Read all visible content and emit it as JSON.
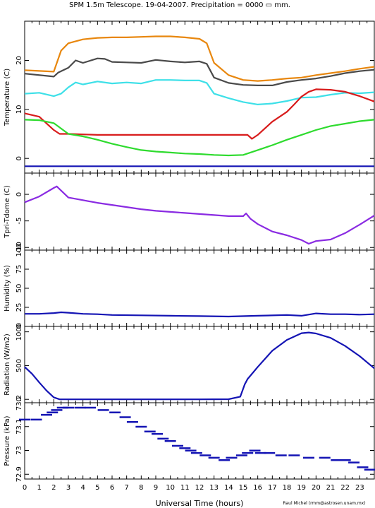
{
  "title": "SPM 1.5m Telescope. 19-04-2007. Precipitation = 0000",
  "title_unit": "mm.",
  "credit": "Raul Michel (rmm@astrosen.unam.mx)",
  "colors": {
    "orange": "#e8870e",
    "dark_gray": "#4a4a4a",
    "cyan": "#3ee0e8",
    "red": "#d81c1c",
    "green": "#2edb2e",
    "blue": "#1414b4",
    "purple": "#8a2be2"
  },
  "chart_data": [
    {
      "type": "line",
      "ylabel": "Temperature (C)",
      "xlim": [
        0,
        24
      ],
      "ylim": [
        -3,
        28
      ],
      "yticks": [
        0,
        10,
        20
      ],
      "series": [
        {
          "color": "orange",
          "x": [
            0,
            2,
            2.5,
            3,
            4,
            5,
            6,
            7,
            8,
            9,
            10,
            11,
            12,
            12.5,
            13,
            14,
            15,
            16,
            17,
            18,
            19,
            20,
            21,
            22,
            23,
            24
          ],
          "y": [
            18,
            17.7,
            22,
            23.5,
            24.3,
            24.6,
            24.7,
            24.7,
            24.8,
            24.9,
            24.9,
            24.7,
            24.4,
            23.5,
            19.5,
            17,
            16,
            15.8,
            16,
            16.3,
            16.5,
            17,
            17.4,
            17.8,
            18.3,
            18.7
          ]
        },
        {
          "color": "dark_gray",
          "x": [
            0,
            2,
            2.3,
            3,
            3.5,
            4,
            5,
            5.5,
            6,
            7,
            8,
            9,
            10,
            11,
            12,
            12.5,
            13,
            14,
            15,
            16,
            17,
            18,
            19,
            20,
            21,
            22,
            23,
            24
          ],
          "y": [
            17.3,
            16.7,
            17.5,
            18.5,
            20,
            19.5,
            20.4,
            20.3,
            19.7,
            19.6,
            19.5,
            20.1,
            19.8,
            19.6,
            19.8,
            19.3,
            16.5,
            15.4,
            15,
            14.9,
            14.9,
            15.6,
            16,
            16.3,
            16.8,
            17.4,
            17.8,
            18.1
          ]
        },
        {
          "color": "cyan",
          "x": [
            0,
            1,
            2,
            2.5,
            3,
            3.5,
            4,
            5,
            6,
            7,
            8,
            9,
            10,
            11,
            12,
            12.5,
            13,
            14,
            15,
            16,
            17,
            18,
            19,
            20,
            21,
            22,
            23,
            24
          ],
          "y": [
            13.2,
            13.4,
            12.7,
            13.2,
            14.5,
            15.5,
            15.1,
            15.7,
            15.3,
            15.5,
            15.3,
            16,
            16,
            15.9,
            15.9,
            15.4,
            13.2,
            12.3,
            11.5,
            11,
            11.2,
            11.7,
            12.4,
            12.5,
            13,
            13.4,
            13.3,
            13.5
          ]
        },
        {
          "color": "red",
          "x": [
            0,
            1,
            2,
            2.4,
            3,
            5,
            8,
            10,
            12,
            14,
            15,
            15.3,
            15.6,
            16,
            17,
            18,
            18.5,
            19,
            19.5,
            20,
            21,
            22,
            23,
            24
          ],
          "y": [
            9.2,
            8.5,
            5.8,
            5,
            5,
            4.8,
            4.8,
            4.8,
            4.8,
            4.8,
            4.8,
            4.8,
            4,
            4.8,
            7.5,
            9.5,
            11,
            12.6,
            13.6,
            14.1,
            14,
            13.6,
            12.7,
            11.6
          ]
        },
        {
          "color": "green",
          "x": [
            0,
            1,
            2,
            3,
            4,
            5,
            6,
            7,
            8,
            9,
            10,
            11,
            12,
            13,
            14,
            15,
            16,
            17,
            18,
            19,
            20,
            21,
            22,
            23,
            24
          ],
          "y": [
            7.9,
            7.8,
            7.2,
            5,
            4.5,
            3.8,
            3,
            2.3,
            1.7,
            1.4,
            1.2,
            1,
            0.9,
            0.7,
            0.6,
            0.7,
            1.7,
            2.7,
            3.8,
            4.8,
            5.8,
            6.6,
            7.1,
            7.6,
            7.9
          ]
        },
        {
          "color": "blue",
          "x": [
            0,
            24
          ],
          "y": [
            -1.6,
            -1.6
          ]
        }
      ]
    },
    {
      "type": "line",
      "ylabel": "Tpri-Tdome (C)",
      "xlim": [
        0,
        24
      ],
      "ylim": [
        -10.5,
        4
      ],
      "yticks": [
        0,
        -5,
        -10
      ],
      "series": [
        {
          "color": "purple",
          "x": [
            0,
            1,
            2,
            2.2,
            3,
            4,
            5,
            6,
            7,
            8,
            9,
            10,
            11,
            12,
            13,
            14,
            15,
            15.2,
            15.5,
            16,
            17,
            18,
            19,
            19.5,
            20,
            21,
            22,
            23,
            24
          ],
          "y": [
            -1.5,
            -0.4,
            1.2,
            1.5,
            -0.6,
            -1.1,
            -1.6,
            -2,
            -2.4,
            -2.8,
            -3.1,
            -3.3,
            -3.5,
            -3.7,
            -3.9,
            -4.1,
            -4.1,
            -3.6,
            -4.6,
            -5.6,
            -7,
            -7.7,
            -8.6,
            -9.3,
            -8.8,
            -8.5,
            -7.3,
            -5.7,
            -4
          ]
        }
      ]
    },
    {
      "type": "line",
      "ylabel": "Humidity (%)",
      "xlim": [
        0,
        24
      ],
      "ylim": [
        0,
        100
      ],
      "yticks": [
        0,
        25,
        50,
        75,
        100
      ],
      "series": [
        {
          "color": "blue",
          "x": [
            0,
            1,
            2,
            2.5,
            3,
            4,
            5,
            6,
            8,
            10,
            12,
            14,
            16,
            18,
            19,
            20,
            21,
            22,
            23,
            24
          ],
          "y": [
            16.5,
            16.5,
            17.5,
            18.5,
            18,
            16.5,
            16,
            15,
            14.5,
            14,
            13.5,
            13,
            14,
            15,
            14,
            17,
            16,
            16,
            15.5,
            16
          ]
        }
      ]
    },
    {
      "type": "line",
      "ylabel": "Radiation (W/m2)",
      "xlim": [
        0,
        24
      ],
      "ylim": [
        -50,
        1080
      ],
      "yticks": [
        0,
        500,
        1000
      ],
      "series": [
        {
          "color": "blue",
          "x": [
            0,
            0.5,
            1,
            1.5,
            2,
            2.4,
            3,
            5,
            8,
            10,
            12,
            14,
            14.8,
            15.1,
            15.3,
            16,
            17,
            18,
            19,
            19.5,
            20,
            21,
            22,
            23,
            24
          ],
          "y": [
            480,
            380,
            250,
            130,
            30,
            0,
            0,
            0,
            0,
            0,
            0,
            2,
            40,
            220,
            300,
            480,
            720,
            880,
            980,
            990,
            975,
            910,
            790,
            640,
            460
          ]
        }
      ]
    },
    {
      "type": "scatter",
      "ylabel": "Pressure (kPa)",
      "xlim": [
        0,
        24
      ],
      "ylim": [
        72.88,
        73.2
      ],
      "yticks": [
        72.9,
        73,
        73.1,
        73.2
      ],
      "ytick_labels": [
        "72.9",
        "73",
        "73.1",
        "73.2"
      ],
      "series": [
        {
          "color": "blue",
          "x": [
            0,
            0.8,
            1.5,
            1.9,
            2.2,
            2.6,
            3,
            3.8,
            4.5,
            5.4,
            6.2,
            6.9,
            7.4,
            8,
            8.6,
            9.1,
            9.5,
            10,
            10.5,
            11,
            11.4,
            11.8,
            12.4,
            13,
            13.7,
            14.2,
            14.9,
            15.3,
            15.8,
            16.2,
            16.8,
            17.6,
            18.5,
            19.5,
            20.6,
            21.4,
            22,
            22.6,
            23.2,
            23.7
          ],
          "y": [
            73.13,
            73.13,
            73.15,
            73.16,
            73.17,
            73.18,
            73.18,
            73.18,
            73.18,
            73.17,
            73.16,
            73.14,
            73.12,
            73.1,
            73.08,
            73.07,
            73.05,
            73.04,
            73.02,
            73.01,
            73,
            72.99,
            72.98,
            72.97,
            72.96,
            72.97,
            72.98,
            72.99,
            73,
            72.99,
            72.99,
            72.98,
            72.98,
            72.97,
            72.97,
            72.96,
            72.96,
            72.95,
            72.93,
            72.92
          ]
        }
      ]
    }
  ],
  "x_axis": {
    "label": "Universal Time (hours)",
    "ticks": [
      "0",
      "1",
      "2",
      "3",
      "4",
      "5",
      "6",
      "7",
      "8",
      "9",
      "10",
      "11",
      "12",
      "13",
      "14",
      "15",
      "16",
      "17",
      "18",
      "19",
      "20",
      "21",
      "22",
      "23"
    ]
  }
}
